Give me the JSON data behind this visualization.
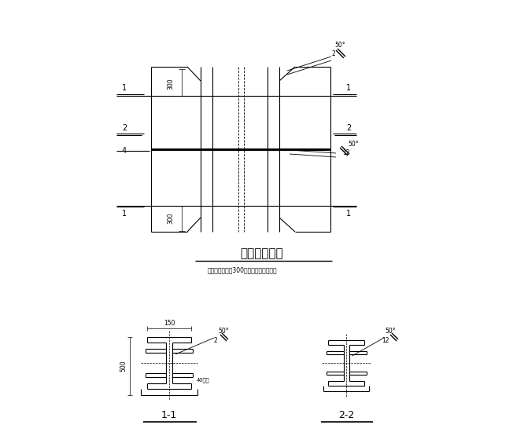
{
  "bg_color": "#ffffff",
  "line_color": "#000000",
  "title": "型钒组装做法",
  "subtitle": "柱板头部位上下300范围内部口全燕透焊",
  "label_11": "1-1",
  "label_22": "2-2",
  "fig_width": 6.66,
  "fig_height": 5.69
}
